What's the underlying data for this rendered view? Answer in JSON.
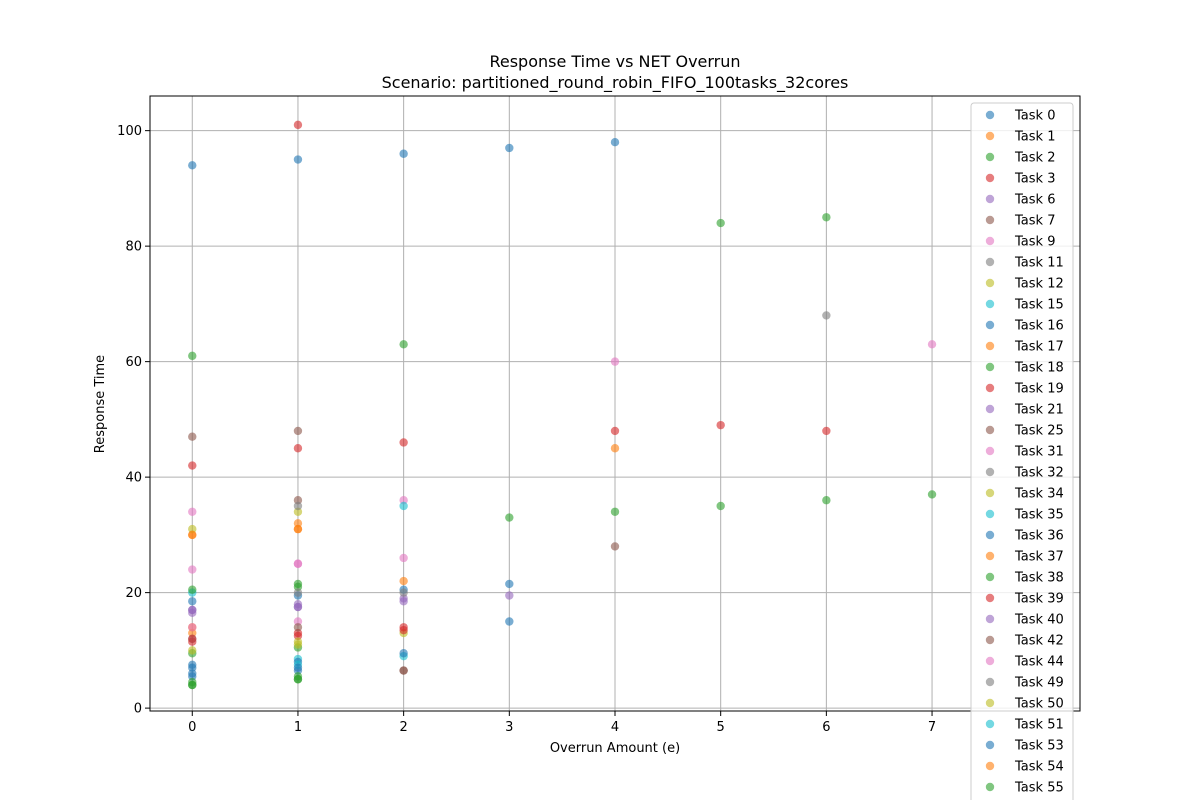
{
  "chart_data": {
    "type": "scatter",
    "title": "Response Time vs NET Overrun",
    "subtitle": "Scenario: partitioned_round_robin_FIFO_100tasks_32cores",
    "xlabel": "Overrun Amount (e)",
    "ylabel": "Response Time",
    "xlim": [
      -0.4,
      8.4
    ],
    "ylim": [
      -0.5,
      106
    ],
    "xticks": [
      0,
      1,
      2,
      3,
      4,
      5,
      6,
      7
    ],
    "yticks": [
      0,
      20,
      40,
      60,
      80,
      100
    ],
    "grid": true,
    "legend_position": "right",
    "series": [
      {
        "name": "Task 0",
        "color": "#1f77b4",
        "points": [
          [
            0,
            94
          ],
          [
            1,
            95
          ],
          [
            2,
            96
          ],
          [
            3,
            97
          ],
          [
            4,
            98
          ]
        ]
      },
      {
        "name": "Task 1",
        "color": "#ff7f0e",
        "points": [
          [
            0,
            30
          ],
          [
            1,
            31
          ],
          [
            2,
            22
          ],
          [
            4,
            45
          ]
        ]
      },
      {
        "name": "Task 2",
        "color": "#2ca02c",
        "points": [
          [
            0,
            61
          ],
          [
            1,
            21
          ],
          [
            2,
            63
          ],
          [
            3,
            33
          ],
          [
            4,
            34
          ],
          [
            5,
            35
          ],
          [
            6,
            36
          ],
          [
            7,
            37
          ]
        ]
      },
      {
        "name": "Task 3",
        "color": "#d62728",
        "points": [
          [
            0,
            42
          ],
          [
            1,
            101
          ],
          [
            2,
            46
          ],
          [
            4,
            48
          ],
          [
            5,
            49
          ],
          [
            6,
            48
          ]
        ]
      },
      {
        "name": "Task 6",
        "color": "#9467bd",
        "points": [
          [
            0,
            17
          ],
          [
            1,
            18
          ],
          [
            2,
            19
          ]
        ]
      },
      {
        "name": "Task 7",
        "color": "#8c564b",
        "points": [
          [
            0,
            47
          ],
          [
            1,
            48
          ],
          [
            4,
            28
          ]
        ]
      },
      {
        "name": "Task 9",
        "color": "#e377c2",
        "points": [
          [
            0,
            34
          ],
          [
            1,
            25
          ],
          [
            2,
            36
          ],
          [
            4,
            60
          ],
          [
            7,
            63
          ]
        ]
      },
      {
        "name": "Task 11",
        "color": "#7f7f7f",
        "points": [
          [
            6,
            68
          ]
        ]
      },
      {
        "name": "Task 12",
        "color": "#bcbd22",
        "points": [
          [
            0,
            31
          ],
          [
            1,
            34
          ],
          [
            2,
            13
          ]
        ]
      },
      {
        "name": "Task 15",
        "color": "#17becf",
        "points": [
          [
            0,
            20
          ],
          [
            2,
            35
          ]
        ]
      },
      {
        "name": "Task 16",
        "color": "#1f77b4",
        "points": [
          [
            0,
            18.5
          ],
          [
            1,
            19.5
          ],
          [
            2,
            20.5
          ],
          [
            3,
            21.5
          ],
          [
            3,
            15
          ]
        ]
      },
      {
        "name": "Task 17",
        "color": "#ff7f0e",
        "points": [
          [
            0,
            13
          ],
          [
            1,
            32
          ]
        ]
      },
      {
        "name": "Task 18",
        "color": "#2ca02c",
        "points": [
          [
            0,
            9.5
          ],
          [
            1,
            10.5
          ],
          [
            0,
            20.5
          ],
          [
            6,
            85
          ],
          [
            5,
            84
          ]
        ]
      },
      {
        "name": "Task 19",
        "color": "#d62728",
        "points": [
          [
            0,
            11.5
          ],
          [
            1,
            12.5
          ],
          [
            2,
            13.5
          ],
          [
            1,
            45
          ]
        ]
      },
      {
        "name": "Task 21",
        "color": "#9467bd",
        "points": [
          [
            0,
            16.5
          ],
          [
            1,
            17.5
          ],
          [
            2,
            18.5
          ],
          [
            3,
            19.5
          ]
        ]
      },
      {
        "name": "Task 25",
        "color": "#8c564b",
        "points": [
          [
            1,
            36
          ],
          [
            2,
            6.5
          ]
        ]
      },
      {
        "name": "Task 31",
        "color": "#e377c2",
        "points": [
          [
            0,
            24
          ],
          [
            2,
            26
          ],
          [
            1,
            15
          ]
        ]
      },
      {
        "name": "Task 32",
        "color": "#7f7f7f",
        "points": [
          [
            1,
            35
          ],
          [
            0,
            12
          ]
        ]
      },
      {
        "name": "Task 34",
        "color": "#bcbd22",
        "points": [
          [
            1,
            11
          ],
          [
            0,
            10
          ]
        ]
      },
      {
        "name": "Task 35",
        "color": "#17becf",
        "points": [
          [
            2,
            9
          ],
          [
            1,
            8.5
          ]
        ]
      },
      {
        "name": "Task 36",
        "color": "#1f77b4",
        "points": [
          [
            0,
            7
          ],
          [
            1,
            8
          ],
          [
            2,
            9.5
          ],
          [
            0,
            5.5
          ],
          [
            1,
            6.5
          ]
        ]
      },
      {
        "name": "Task 37",
        "color": "#ff7f0e",
        "points": [
          [
            0,
            14
          ]
        ]
      },
      {
        "name": "Task 38",
        "color": "#2ca02c",
        "points": [
          [
            0,
            4
          ],
          [
            1,
            5
          ],
          [
            0,
            4.5
          ],
          [
            1,
            5.5
          ]
        ]
      },
      {
        "name": "Task 39",
        "color": "#d62728",
        "points": [
          [
            0,
            12
          ],
          [
            1,
            13
          ],
          [
            2,
            14
          ]
        ]
      },
      {
        "name": "Task 40",
        "color": "#9467bd",
        "points": [
          [
            1,
            17.5
          ],
          [
            0,
            17
          ]
        ]
      },
      {
        "name": "Task 42",
        "color": "#8c564b",
        "points": [
          [
            2,
            6.5
          ],
          [
            1,
            14
          ]
        ]
      },
      {
        "name": "Task 44",
        "color": "#e377c2",
        "points": [
          [
            1,
            25
          ],
          [
            0,
            14
          ]
        ]
      },
      {
        "name": "Task 49",
        "color": "#7f7f7f",
        "points": [
          [
            1,
            20
          ],
          [
            2,
            20
          ]
        ]
      },
      {
        "name": "Task 50",
        "color": "#bcbd22",
        "points": [
          [
            1,
            11.5
          ]
        ]
      },
      {
        "name": "Task 51",
        "color": "#17becf",
        "points": [
          [
            1,
            7.5
          ]
        ]
      },
      {
        "name": "Task 53",
        "color": "#1f77b4",
        "points": [
          [
            0,
            6
          ],
          [
            1,
            7
          ],
          [
            0,
            7.5
          ]
        ]
      },
      {
        "name": "Task 54",
        "color": "#ff7f0e",
        "points": [
          [
            0,
            30
          ],
          [
            1,
            31
          ]
        ]
      },
      {
        "name": "Task 55",
        "color": "#2ca02c",
        "points": [
          [
            0,
            4
          ],
          [
            1,
            5
          ],
          [
            1,
            21.5
          ]
        ]
      }
    ]
  }
}
